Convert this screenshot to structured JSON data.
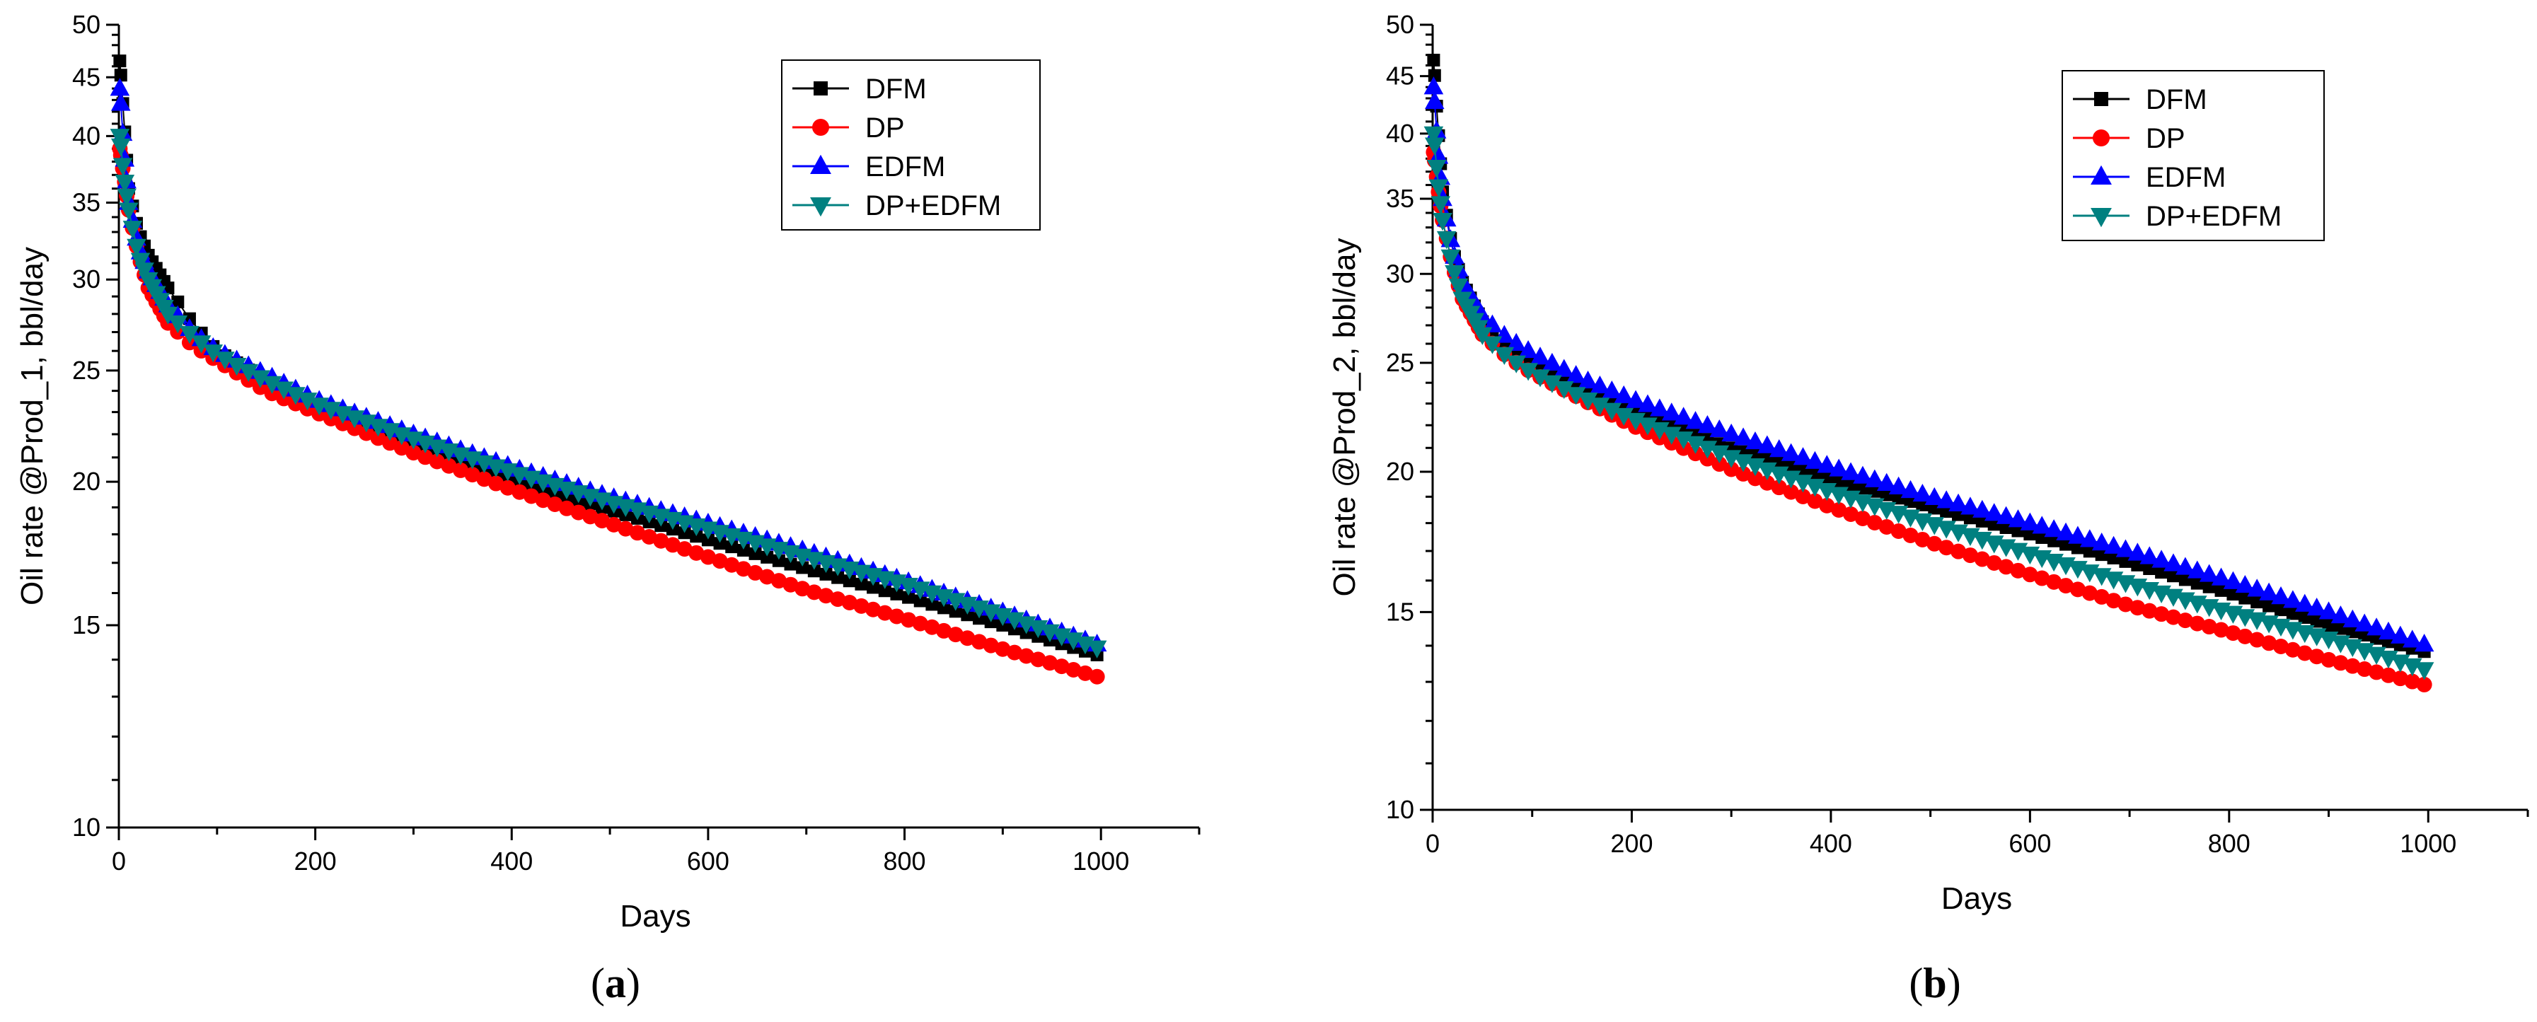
{
  "figure": {
    "colors": {
      "DFM": "#000000",
      "DP": "#ff0000",
      "EDFM": "#0000ff",
      "DP+EDFM": "#008080"
    },
    "legend_labels": [
      "DFM",
      "DP",
      "EDFM",
      "DP+EDFM"
    ]
  },
  "chart_data": [
    {
      "type": "line",
      "panel_label": "a",
      "title": "",
      "xlabel": "Days",
      "ylabel": "Oil rate @Prod_1, bbl/day",
      "xlim": [
        0,
        1100
      ],
      "ylim": [
        10,
        50
      ],
      "yscale": "log",
      "xticks": [
        0,
        200,
        400,
        600,
        800,
        1000
      ],
      "yticks": [
        10,
        15,
        20,
        25,
        30,
        35,
        40,
        45,
        50
      ],
      "legend_position": "top-right",
      "series": [
        {
          "name": "DFM",
          "marker": "square",
          "x": [
            1,
            5,
            10,
            20,
            30,
            50,
            75,
            100,
            150,
            200,
            300,
            400,
            500,
            600,
            700,
            800,
            900,
            1000
          ],
          "y": [
            46.5,
            41.5,
            36,
            33,
            31.5,
            29.5,
            27.5,
            26,
            24.5,
            23.3,
            21.6,
            20.1,
            18.9,
            17.8,
            16.8,
            15.9,
            15.0,
            14.1
          ]
        },
        {
          "name": "DP",
          "marker": "circle",
          "x": [
            1,
            5,
            10,
            20,
            30,
            50,
            75,
            100,
            150,
            200,
            300,
            400,
            500,
            600,
            700,
            800,
            900,
            1000
          ],
          "y": [
            39,
            37,
            34.5,
            31.5,
            29.5,
            27.5,
            26.3,
            25.5,
            24,
            23.0,
            21.2,
            19.7,
            18.4,
            17.2,
            16.1,
            15.2,
            14.3,
            13.5
          ]
        },
        {
          "name": "EDFM",
          "marker": "triangle-up",
          "x": [
            1,
            5,
            10,
            20,
            30,
            50,
            75,
            100,
            150,
            200,
            300,
            400,
            500,
            600,
            700,
            800,
            900,
            1000
          ],
          "y": [
            44,
            39,
            35,
            32,
            30.5,
            28.5,
            27,
            26,
            24.8,
            23.6,
            22.0,
            20.6,
            19.4,
            18.4,
            17.4,
            16.4,
            15.4,
            14.4
          ]
        },
        {
          "name": "DP+EDFM",
          "marker": "triangle-down",
          "x": [
            1,
            5,
            10,
            20,
            30,
            50,
            75,
            100,
            150,
            200,
            300,
            400,
            500,
            600,
            700,
            800,
            900,
            1000
          ],
          "y": [
            40,
            37,
            34.5,
            31.5,
            30,
            28,
            26.8,
            25.8,
            24.5,
            23.4,
            21.8,
            20.4,
            19.2,
            18.2,
            17.2,
            16.3,
            15.3,
            14.3
          ]
        }
      ]
    },
    {
      "type": "line",
      "panel_label": "b",
      "title": "",
      "xlabel": "Days",
      "ylabel": "Oil rate @Prod_2, bbl/day",
      "xlim": [
        0,
        1100
      ],
      "ylim": [
        10,
        50
      ],
      "yscale": "log",
      "xticks": [
        0,
        200,
        400,
        600,
        800,
        1000
      ],
      "yticks": [
        10,
        15,
        20,
        25,
        30,
        35,
        40,
        45,
        50
      ],
      "legend_position": "top-right",
      "series": [
        {
          "name": "DFM",
          "marker": "square",
          "x": [
            1,
            5,
            10,
            20,
            30,
            50,
            75,
            100,
            150,
            200,
            300,
            400,
            500,
            600,
            700,
            800,
            900,
            1000
          ],
          "y": [
            46.5,
            41,
            35.5,
            31.5,
            29.5,
            27.2,
            25.8,
            24.9,
            23.7,
            22.6,
            21.0,
            19.7,
            18.6,
            17.6,
            16.6,
            15.6,
            14.6,
            13.8
          ]
        },
        {
          "name": "DP",
          "marker": "circle",
          "x": [
            1,
            5,
            10,
            20,
            30,
            50,
            75,
            100,
            150,
            200,
            300,
            400,
            500,
            600,
            700,
            800,
            900,
            1000
          ],
          "y": [
            38.5,
            36,
            33.5,
            30.5,
            28.5,
            26.5,
            25.3,
            24.5,
            23.2,
            22.0,
            20.1,
            18.6,
            17.3,
            16.2,
            15.2,
            14.4,
            13.6,
            12.9
          ]
        },
        {
          "name": "EDFM",
          "marker": "triangle-up",
          "x": [
            1,
            5,
            10,
            20,
            30,
            50,
            75,
            100,
            150,
            200,
            300,
            400,
            500,
            600,
            700,
            800,
            900,
            1000
          ],
          "y": [
            44,
            39,
            35,
            31.5,
            29.5,
            27.5,
            26.3,
            25.5,
            24.2,
            23.2,
            21.6,
            20.2,
            19.0,
            18.0,
            17.0,
            16.0,
            15.0,
            14.0
          ]
        },
        {
          "name": "DP+EDFM",
          "marker": "triangle-down",
          "x": [
            1,
            5,
            10,
            20,
            30,
            50,
            75,
            100,
            150,
            200,
            300,
            400,
            500,
            600,
            700,
            800,
            900,
            1000
          ],
          "y": [
            40,
            36.5,
            33.5,
            30.5,
            28.5,
            26.5,
            25.3,
            24.5,
            23.3,
            22.3,
            20.6,
            19.2,
            18.0,
            16.9,
            15.9,
            15.0,
            14.2,
            13.3
          ]
        }
      ]
    }
  ]
}
